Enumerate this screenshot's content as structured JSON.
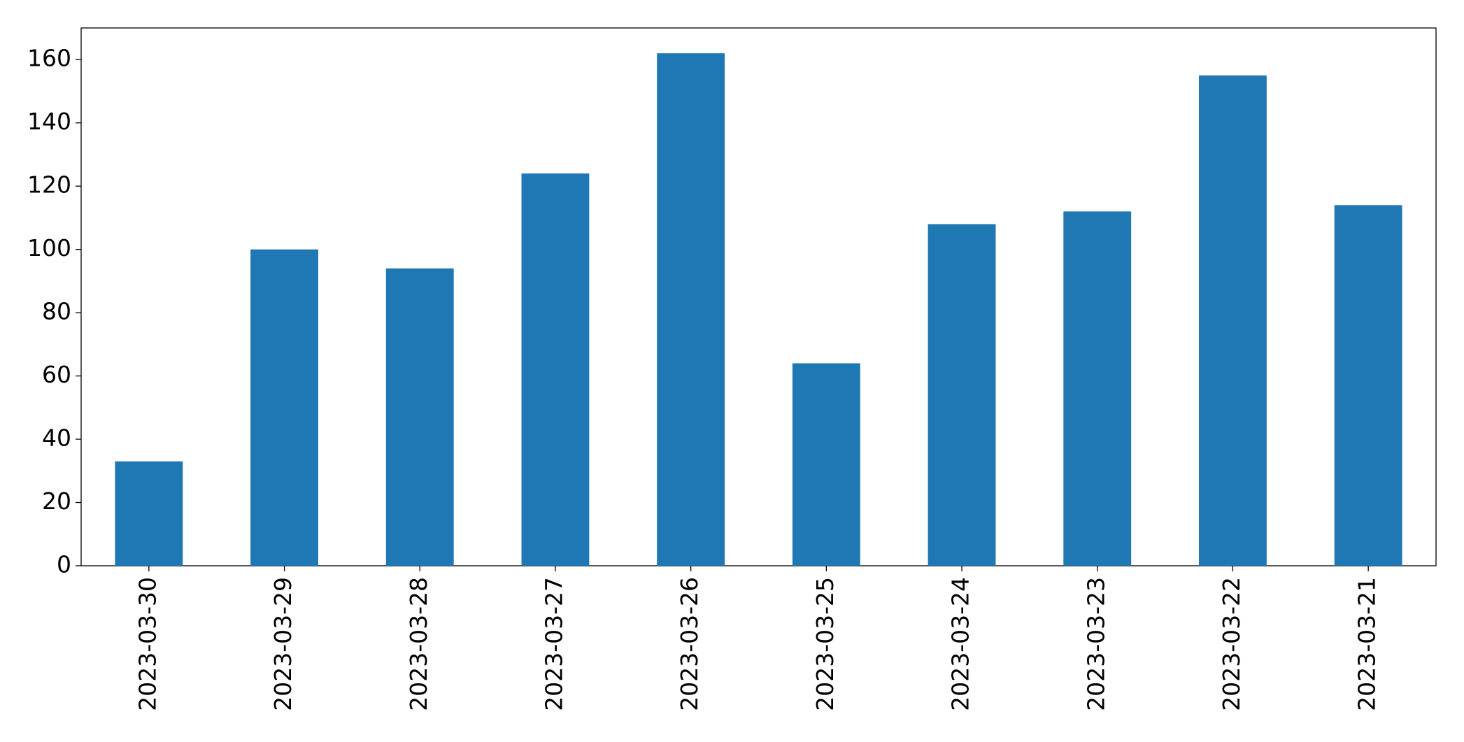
{
  "chart_data": {
    "type": "bar",
    "categories": [
      "2023-03-30",
      "2023-03-29",
      "2023-03-28",
      "2023-03-27",
      "2023-03-26",
      "2023-03-25",
      "2023-03-24",
      "2023-03-23",
      "2023-03-22",
      "2023-03-21"
    ],
    "values": [
      33,
      100,
      94,
      124,
      162,
      64,
      108,
      112,
      155,
      114
    ],
    "color": "#1f77b4",
    "ylim": [
      0,
      170
    ],
    "yticks": [
      0,
      20,
      40,
      60,
      80,
      100,
      120,
      140,
      160
    ],
    "grid": false
  }
}
